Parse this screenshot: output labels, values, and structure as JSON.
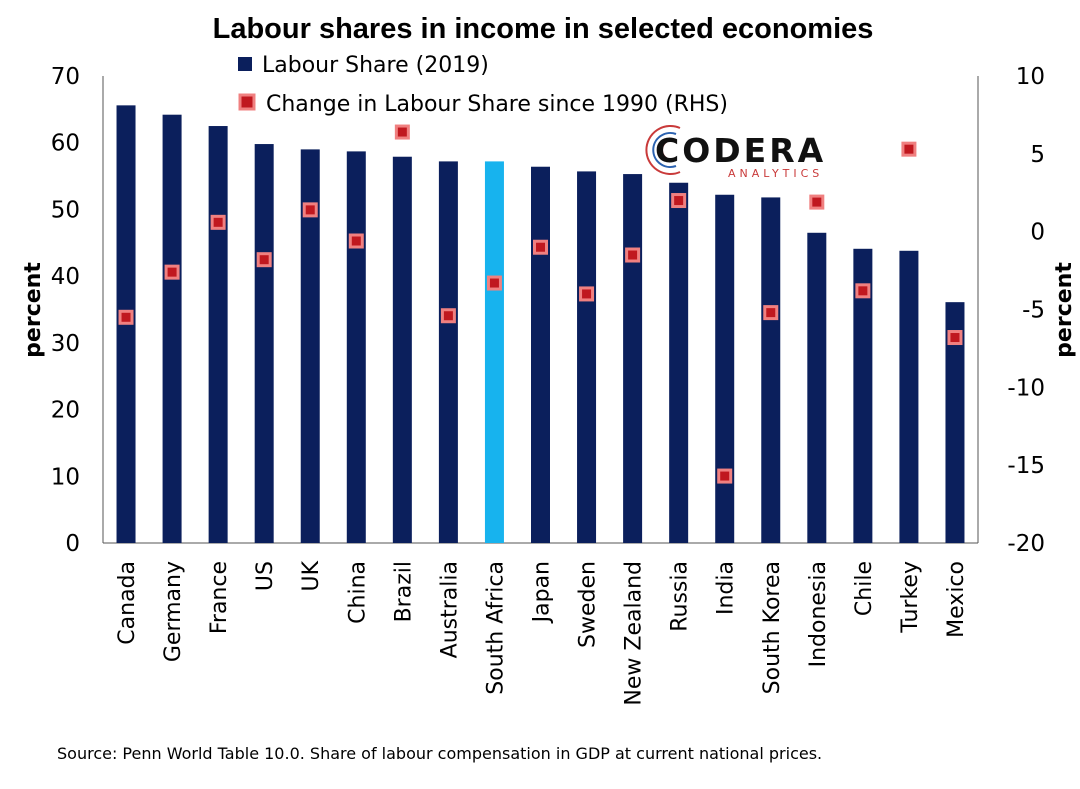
{
  "chart_data": {
    "type": "bar",
    "title": "Labour shares in income in selected economies",
    "ylabel": "percent",
    "y2label": "percent",
    "ylim": [
      0,
      70
    ],
    "y2lim": [
      -20,
      10
    ],
    "yticks": [
      0,
      10,
      20,
      30,
      40,
      50,
      60,
      70
    ],
    "y2ticks": [
      -20,
      -15,
      -10,
      -5,
      0,
      5,
      10
    ],
    "categories": [
      "Canada",
      "Germany",
      "France",
      "US",
      "UK",
      "China",
      "Brazil",
      "Australia",
      "South Africa",
      "Japan",
      "Sweden",
      "New Zealand",
      "Russia",
      "India",
      "South Korea",
      "Indonesia",
      "Chile",
      "Turkey",
      "Mexico"
    ],
    "highlight_category": "South Africa",
    "series": [
      {
        "name": "Labour Share (2019)",
        "type": "bar",
        "axis": "left",
        "color": "#0b1f5c",
        "highlight_color": "#17b3ee",
        "values": [
          65.6,
          64.2,
          62.5,
          59.8,
          59.0,
          58.7,
          57.9,
          57.2,
          57.2,
          56.4,
          55.7,
          55.3,
          54.0,
          52.2,
          51.8,
          46.5,
          44.1,
          43.8,
          36.1
        ]
      },
      {
        "name": "Change in Labour Share since 1990 (RHS)",
        "type": "scatter",
        "axis": "right",
        "color": "#c0181f",
        "values": [
          -5.5,
          -2.6,
          0.6,
          -1.8,
          1.4,
          -0.6,
          6.4,
          -5.4,
          -3.3,
          -1.0,
          -4.0,
          -1.5,
          2.0,
          -15.7,
          -5.2,
          1.9,
          -3.8,
          5.3,
          -6.8
        ]
      }
    ]
  },
  "logo": {
    "name": "CODERA",
    "tagline": "ANALYTICS"
  },
  "source": "Source: Penn World Table 10.0. Share of labour compensation in GDP at current national prices."
}
